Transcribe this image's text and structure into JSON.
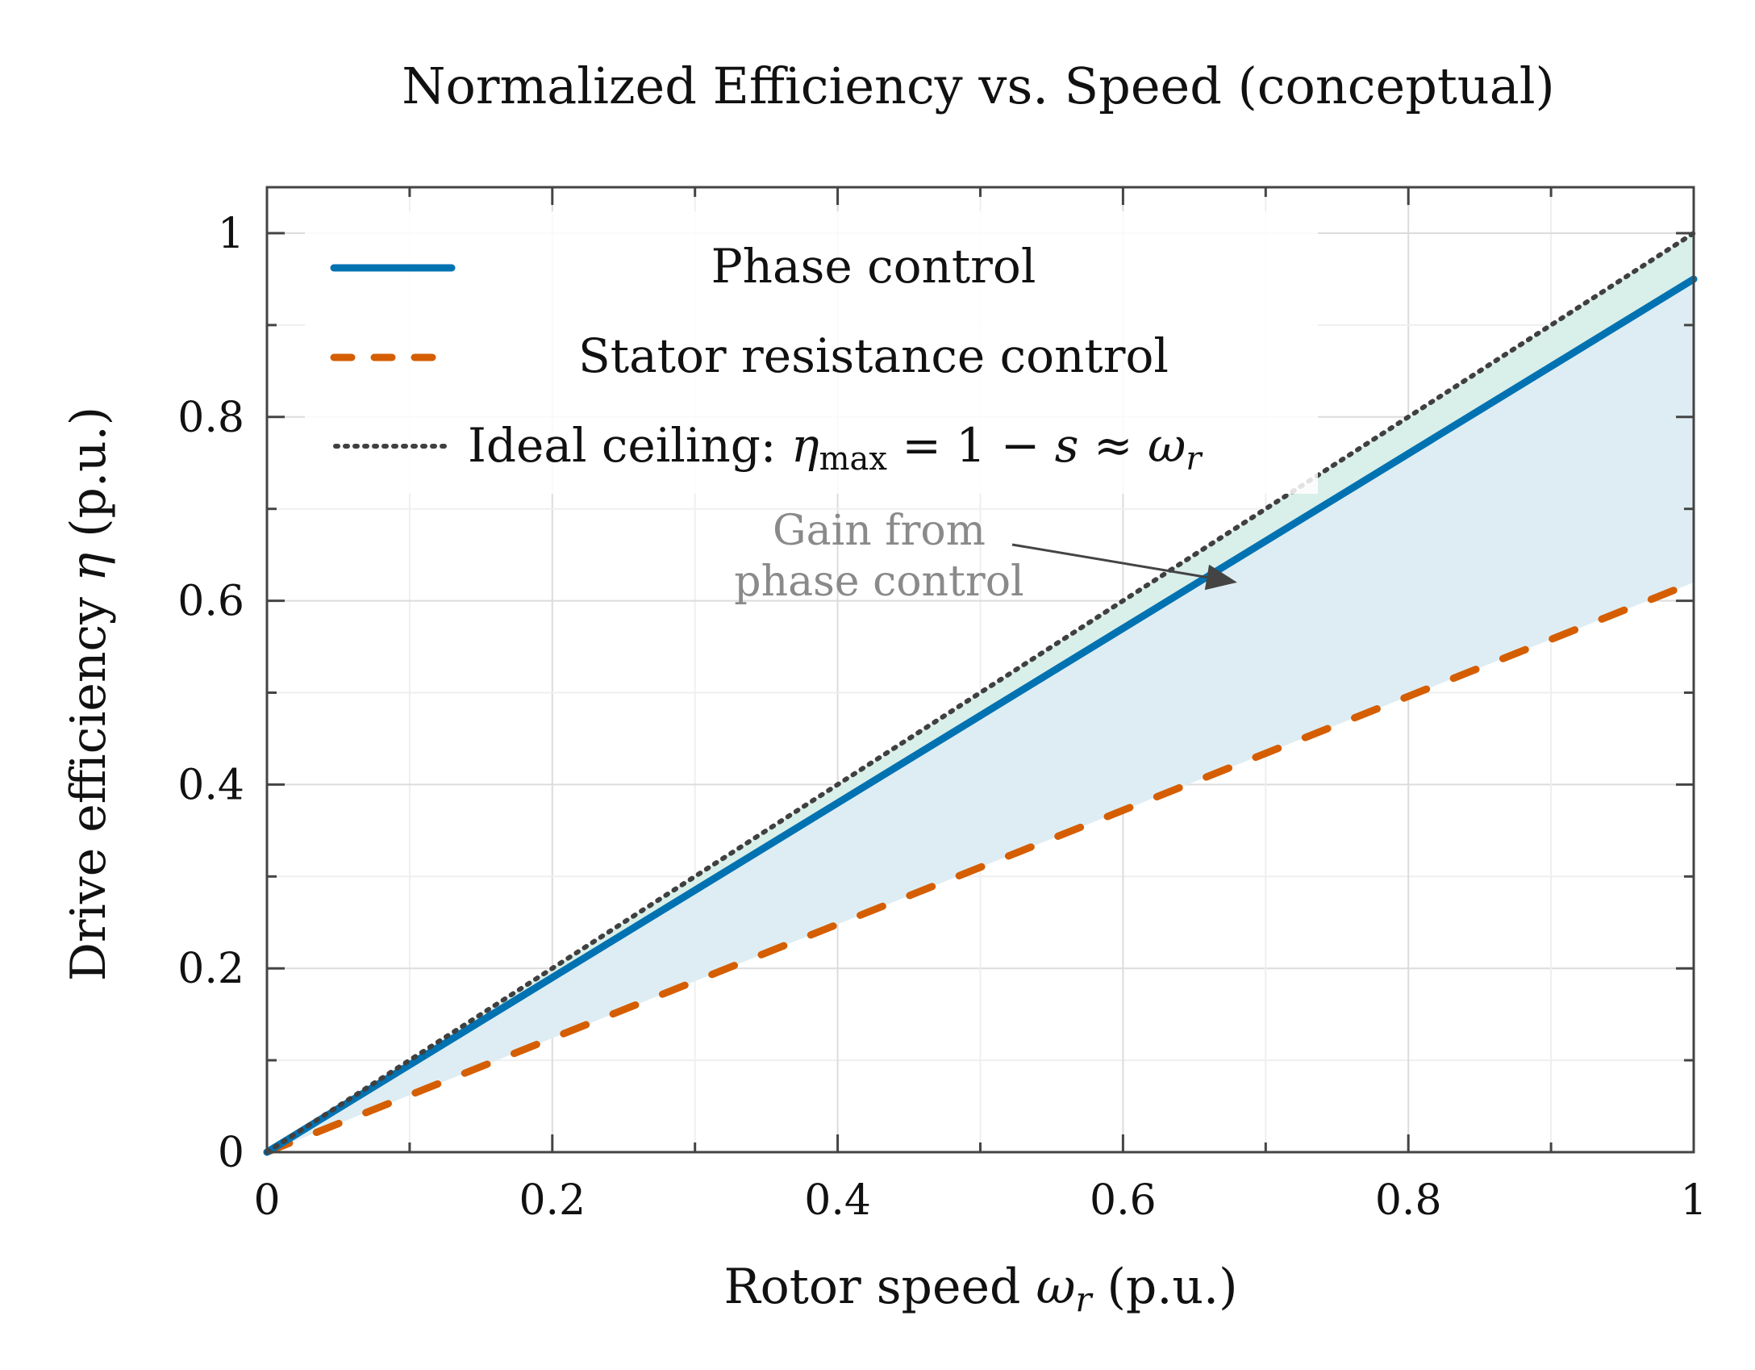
{
  "chart_data": {
    "type": "line",
    "title": "Normalized Efficiency vs. Speed (conceptual)",
    "xlabel": "Rotor speed ωr (p.u.)",
    "ylabel": "Drive efficiency η (p.u.)",
    "xlim": [
      0,
      1
    ],
    "ylim": [
      0,
      1.05
    ],
    "xticks": [
      0,
      0.2,
      0.4,
      0.6,
      0.8,
      1
    ],
    "xtick_labels": [
      "0",
      "0.2",
      "0.4",
      "0.6",
      "0.8",
      "1"
    ],
    "yticks": [
      0,
      0.2,
      0.4,
      0.6,
      0.8,
      1
    ],
    "ytick_labels": [
      "0",
      "0.2",
      "0.4",
      "0.6",
      "0.8",
      "1"
    ],
    "grid": true,
    "legend_position": "top-left",
    "x": [
      0,
      0.1,
      0.2,
      0.3,
      0.4,
      0.5,
      0.6,
      0.7,
      0.8,
      0.9,
      1.0
    ],
    "series": [
      {
        "name": "Phase control",
        "style": "solid",
        "color": "#0072b2",
        "values": [
          0,
          0.095,
          0.19,
          0.285,
          0.38,
          0.475,
          0.57,
          0.665,
          0.76,
          0.855,
          0.95
        ]
      },
      {
        "name": "Stator resistance control",
        "style": "dashed",
        "color": "#d55e00",
        "values": [
          0,
          0.062,
          0.124,
          0.186,
          0.248,
          0.31,
          0.372,
          0.434,
          0.496,
          0.558,
          0.62
        ]
      },
      {
        "name": "Ideal ceiling: ηmax = 1 − s ≈ ωr",
        "style": "dotted",
        "color": "#404040",
        "values": [
          0,
          0.1,
          0.2,
          0.3,
          0.4,
          0.5,
          0.6,
          0.7,
          0.8,
          0.9,
          1.0
        ]
      }
    ],
    "fills": [
      {
        "between": [
          "Ideal ceiling: ηmax = 1 − s ≈ ωr",
          "Phase control"
        ],
        "color": "#d9efe9"
      },
      {
        "between": [
          "Phase control",
          "Stator resistance control"
        ],
        "color": "#deedf4"
      }
    ],
    "legend": {
      "phase": "Phase control",
      "stator": "Stator resistance control",
      "ideal_prefix": "Ideal ceiling: ",
      "ideal_eta": "η",
      "ideal_sub": "max",
      "ideal_rest": " = 1 − ",
      "ideal_s": "s",
      "ideal_approx": " ≈ ",
      "ideal_omega": "ω",
      "ideal_r": "r"
    },
    "annotation": {
      "line1": "Gain from",
      "line2": "phase control",
      "target": [
        0.68,
        0.62
      ]
    },
    "xlabel_parts": {
      "pre": "Rotor speed ",
      "omega": "ω",
      "sub": "r",
      "post": " (p.u.)"
    },
    "ylabel_parts": {
      "pre": "Drive efficiency ",
      "eta": "η",
      "post": " (p.u.)"
    }
  }
}
